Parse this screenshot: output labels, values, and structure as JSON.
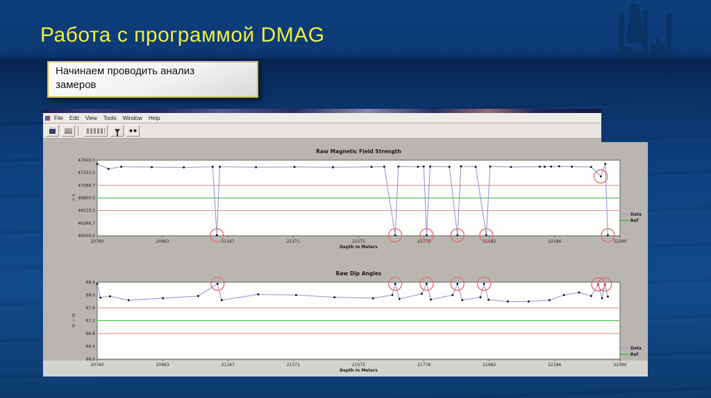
{
  "slide": {
    "title": "Работа с программой DMAG",
    "callout_lines": [
      "Начинаем проводить анализ",
      "замеров"
    ],
    "title_color": "#eef03e",
    "background_color": "#0d3d7a"
  },
  "app_window": {
    "menu_items": [
      "File",
      "Edit",
      "View",
      "Tools",
      "Window",
      "Help"
    ],
    "toolbar_icons": [
      "save-icon",
      "print-icon",
      "options-button",
      "filter-icon",
      "find-icon"
    ]
  },
  "chart_data": [
    {
      "type": "line",
      "title": "Raw Magnetic Field Strength",
      "xlabel": "Depth In Meters",
      "ylabel": "nT",
      "legend": [
        "Data",
        "Ref"
      ],
      "legend_position": "right",
      "grid": false,
      "xlim": [
        20760,
        22390
      ],
      "ylim": [
        46000,
        47600
      ],
      "xtick_labels": [
        "20760",
        "20963",
        "21167",
        "21371",
        "21575",
        "21778",
        "21982",
        "22186",
        "22390"
      ],
      "ytick_labels": [
        "47600.0",
        "47333.3",
        "47066.7",
        "46800.0",
        "46533.3",
        "46266.7",
        "46000.0"
      ],
      "ref_lines": [
        {
          "y": 47066.7,
          "color": "#e08a8a"
        },
        {
          "y": 46800.0,
          "color": "#2fbb2f"
        },
        {
          "y": 46533.3,
          "color": "#e08a8a"
        }
      ],
      "series": [
        {
          "name": "Data",
          "color": "#9598d6",
          "points": [
            [
              20760,
              47520
            ],
            [
              20795,
              47415
            ],
            [
              20835,
              47460
            ],
            [
              20930,
              47452
            ],
            [
              21030,
              47448
            ],
            [
              21120,
              47460
            ],
            [
              21133,
              46010
            ],
            [
              21142,
              47460
            ],
            [
              21255,
              47450
            ],
            [
              21375,
              47456
            ],
            [
              21495,
              47450
            ],
            [
              21615,
              47458
            ],
            [
              21655,
              47462
            ],
            [
              21689,
              46010
            ],
            [
              21699,
              47465
            ],
            [
              21760,
              47460
            ],
            [
              21778,
              47466
            ],
            [
              21787,
              46010
            ],
            [
              21798,
              47466
            ],
            [
              21858,
              47460
            ],
            [
              21883,
              46010
            ],
            [
              21894,
              47468
            ],
            [
              21940,
              47460
            ],
            [
              21973,
              46010
            ],
            [
              21985,
              47466
            ],
            [
              22050,
              47456
            ],
            [
              22140,
              47462
            ],
            [
              22155,
              47460
            ],
            [
              22175,
              47464
            ],
            [
              22200,
              47470
            ],
            [
              22240,
              47462
            ],
            [
              22300,
              47456
            ],
            [
              22330,
              47255
            ],
            [
              22344,
              47520
            ],
            [
              22352,
              46010
            ]
          ]
        }
      ],
      "anomalies_circled": [
        [
          21133,
          46010
        ],
        [
          21689,
          46010
        ],
        [
          21787,
          46010
        ],
        [
          21883,
          46010
        ],
        [
          21973,
          46010
        ],
        [
          22330,
          47255
        ],
        [
          22352,
          46010
        ]
      ]
    },
    {
      "type": "line",
      "title": "Raw Dip Angles",
      "xlabel": "Depth In Meters",
      "ylabel": "Dip",
      "legend": [
        "Data",
        "Ref"
      ],
      "legend_position": "right",
      "grid": false,
      "xlim": [
        20760,
        22390
      ],
      "ylim": [
        66.0,
        68.4
      ],
      "xtick_labels": [
        "20760",
        "20963",
        "21167",
        "21371",
        "21575",
        "21778",
        "21982",
        "22186",
        "22390"
      ],
      "ytick_labels": [
        "68.4",
        "68.0",
        "67.6",
        "67.2",
        "66.8",
        "66.4",
        "66.0"
      ],
      "ref_lines": [
        {
          "y": 67.6,
          "color": "#e08a8a"
        },
        {
          "y": 67.2,
          "color": "#2fbb2f"
        },
        {
          "y": 66.8,
          "color": "#e08a8a"
        }
      ],
      "series": [
        {
          "name": "Data",
          "color": "#9598d6",
          "points": [
            [
              20760,
              68.35
            ],
            [
              20770,
              67.92
            ],
            [
              20800,
              67.96
            ],
            [
              20858,
              67.84
            ],
            [
              20965,
              67.9
            ],
            [
              21075,
              67.97
            ],
            [
              21135,
              68.35
            ],
            [
              21148,
              67.84
            ],
            [
              21262,
              68.02
            ],
            [
              21380,
              68.0
            ],
            [
              21500,
              67.93
            ],
            [
              21620,
              67.9
            ],
            [
              21680,
              68.0
            ],
            [
              21689,
              68.35
            ],
            [
              21702,
              67.88
            ],
            [
              21772,
              68.04
            ],
            [
              21787,
              68.35
            ],
            [
              21800,
              67.86
            ],
            [
              21868,
              68.0
            ],
            [
              21883,
              68.35
            ],
            [
              21898,
              67.84
            ],
            [
              21955,
              67.93
            ],
            [
              21966,
              68.35
            ],
            [
              21980,
              67.85
            ],
            [
              22040,
              67.8
            ],
            [
              22105,
              67.8
            ],
            [
              22170,
              67.84
            ],
            [
              22215,
              68.0
            ],
            [
              22262,
              68.08
            ],
            [
              22300,
              67.97
            ],
            [
              22322,
              68.33
            ],
            [
              22334,
              67.9
            ],
            [
              22343,
              68.33
            ],
            [
              22352,
              67.95
            ]
          ]
        }
      ],
      "anomalies_circled": [
        [
          21135,
          68.35
        ],
        [
          21689,
          68.35
        ],
        [
          21787,
          68.35
        ],
        [
          21883,
          68.35
        ],
        [
          21966,
          68.35
        ],
        [
          22322,
          68.33
        ],
        [
          22343,
          68.33
        ]
      ]
    }
  ]
}
